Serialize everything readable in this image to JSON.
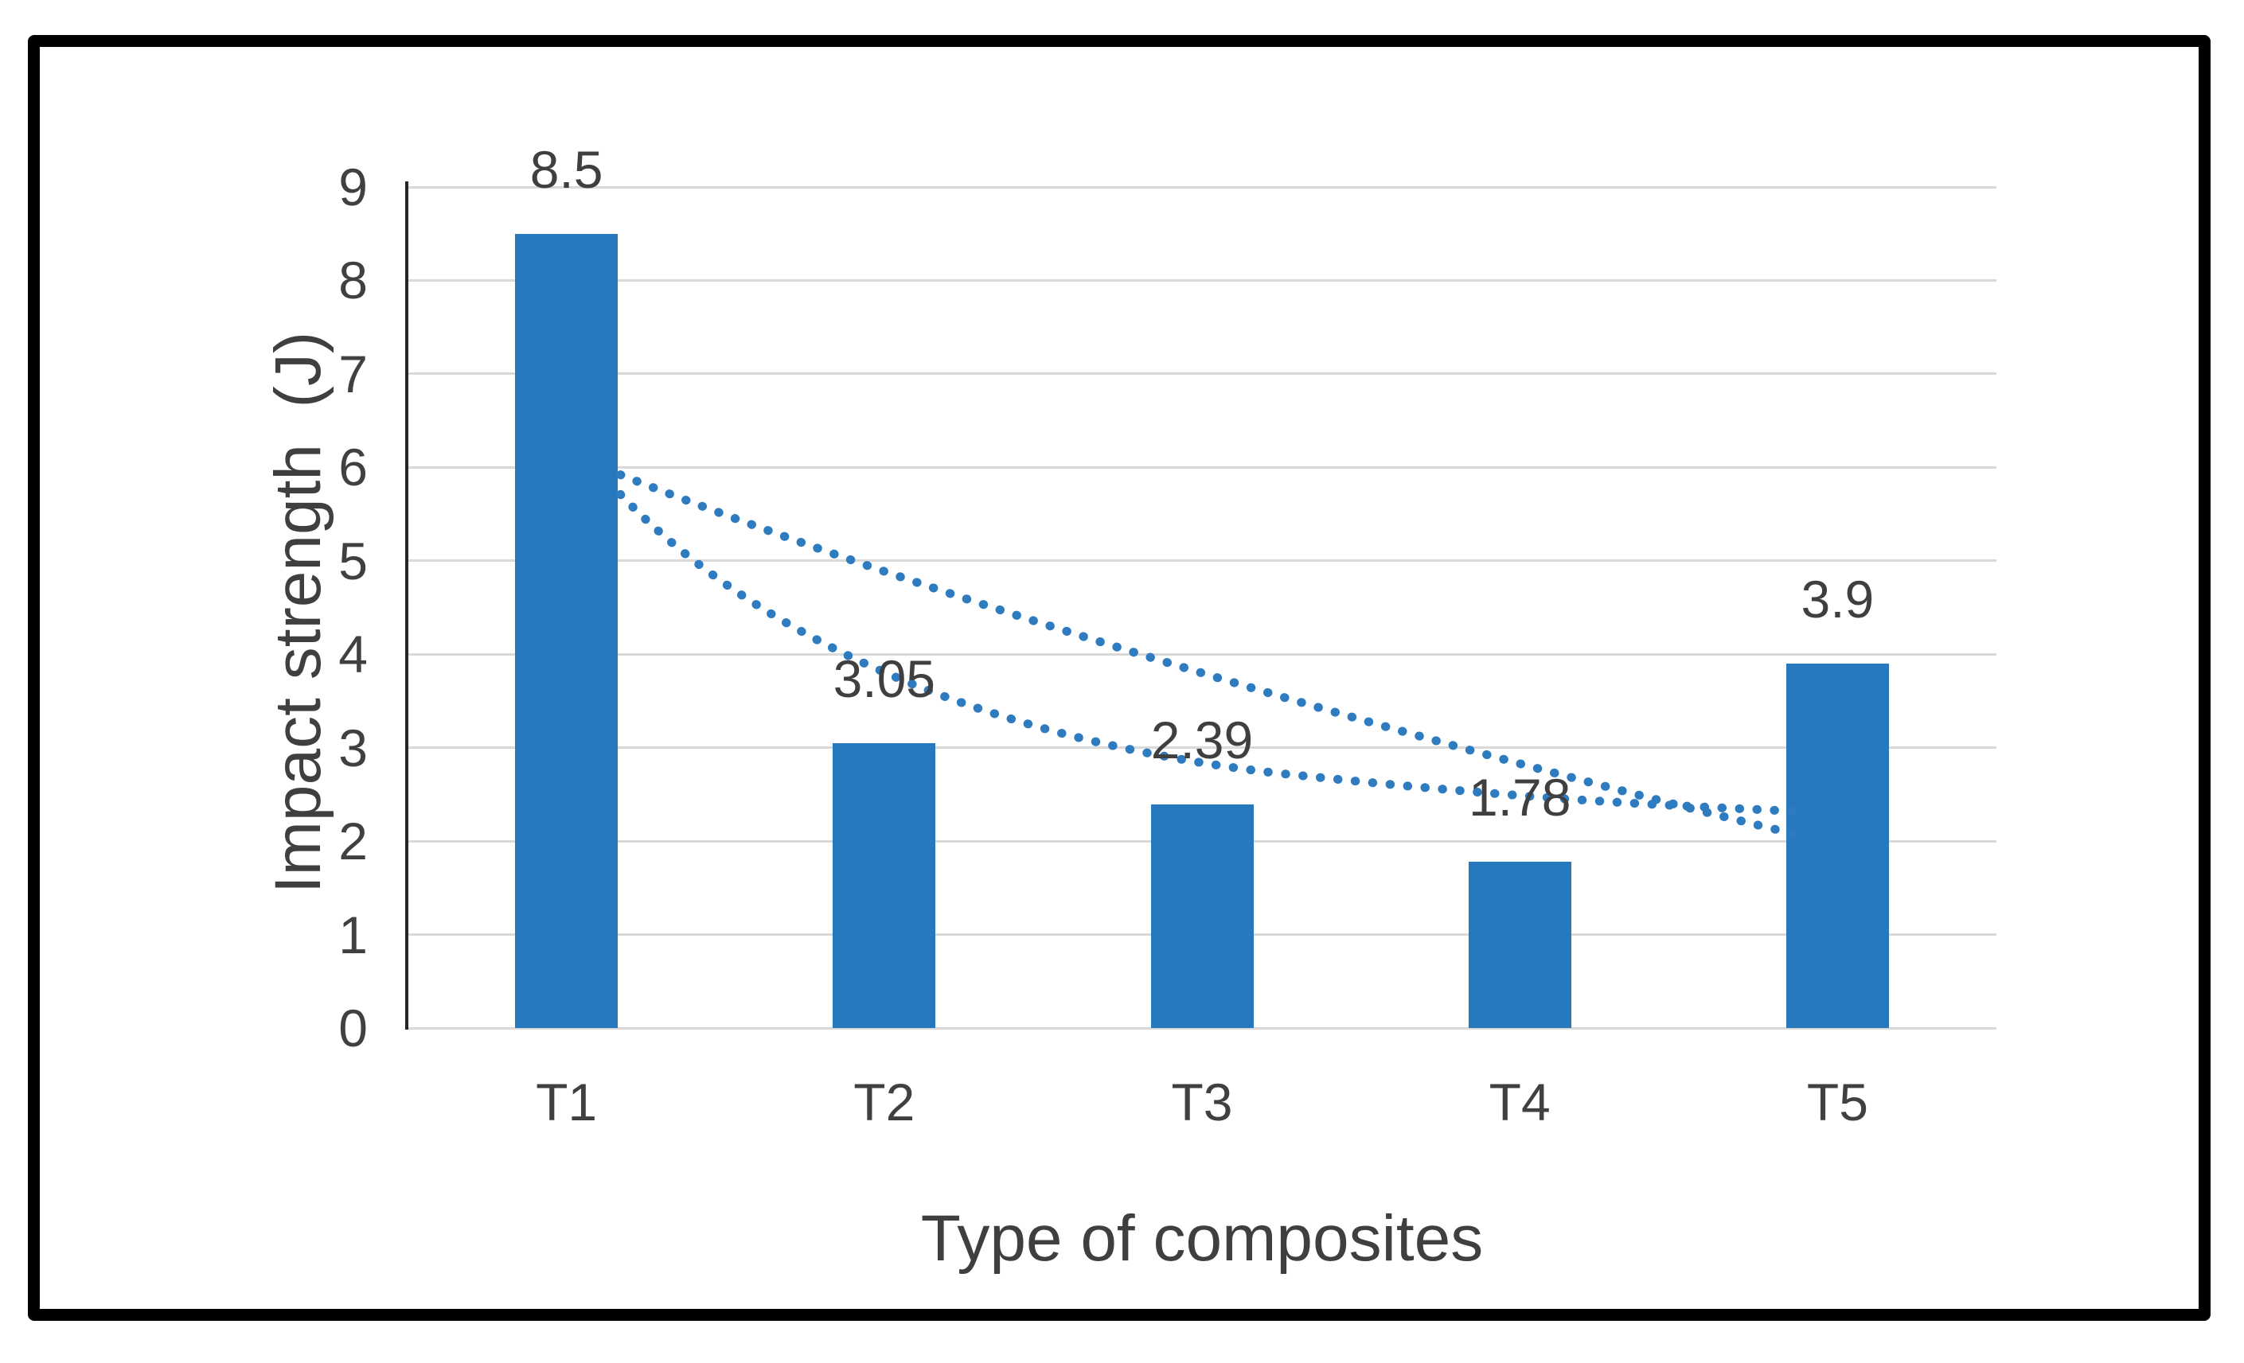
{
  "figure": {
    "background_color": "#ffffff",
    "border_color": "#000000"
  },
  "chart_data": {
    "type": "bar",
    "title": "",
    "categories": [
      "T1",
      "T2",
      "T3",
      "T4",
      "T5"
    ],
    "values": [
      8.5,
      3.05,
      2.39,
      1.78,
      3.9
    ],
    "data_labels": [
      "8.5",
      "3.05",
      "2.39",
      "1.78",
      "3.9"
    ],
    "xlabel": "Type of composites",
    "ylabel": "Impact strength  (J)",
    "ylim": [
      0,
      9
    ],
    "ytick_interval": 1,
    "yticks": [
      "0",
      "1",
      "2",
      "3",
      "4",
      "5",
      "6",
      "7",
      "8",
      "9"
    ],
    "grid": true,
    "legend_position": "none",
    "bar_color": "#2878BE",
    "trendline_color": "#2F7BBF",
    "gridline_color": "#D9D9D9",
    "axis_line_color": "#262626",
    "text_color": "#3F3F3F",
    "trendlines": [
      {
        "name": "trendline-upper",
        "style": "dotted",
        "bezier_points_xy": [
          [
            1.17,
            5.92
          ],
          [
            2.3,
            4.4
          ],
          [
            3.8,
            2.95
          ],
          [
            4.86,
            2.08
          ]
        ]
      },
      {
        "name": "trendline-lower",
        "style": "dotted",
        "bezier_points_xy": [
          [
            1.17,
            5.71
          ],
          [
            1.62,
            4.11
          ],
          [
            2.35,
            3.08
          ],
          [
            3.23,
            2.73
          ],
          [
            4.1,
            2.42
          ],
          [
            4.5,
            2.38
          ],
          [
            4.86,
            2.32
          ]
        ]
      }
    ]
  }
}
